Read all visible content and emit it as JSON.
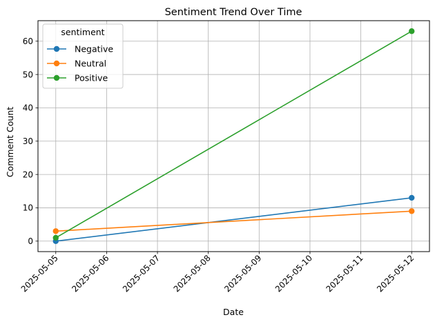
{
  "chart_data": {
    "type": "line",
    "title": "Sentiment Trend Over Time",
    "xlabel": "Date",
    "ylabel": "Comment Count",
    "x": [
      "2025-05-05",
      "2025-05-12"
    ],
    "xticks": [
      "2025-05-05",
      "2025-05-06",
      "2025-05-07",
      "2025-05-08",
      "2025-05-09",
      "2025-05-10",
      "2025-05-11",
      "2025-05-12"
    ],
    "xlim": [
      "2025-05-05",
      "2025-05-12"
    ],
    "yticks": [
      0,
      10,
      20,
      30,
      40,
      50,
      60
    ],
    "ylim": [
      0,
      63
    ],
    "grid": true,
    "legend": {
      "title": "sentiment",
      "placement": "top-left"
    },
    "series": [
      {
        "name": "Negative",
        "values": [
          0,
          13
        ],
        "color": "#1f77b4"
      },
      {
        "name": "Neutral",
        "values": [
          3,
          9
        ],
        "color": "#ff7f0e"
      },
      {
        "name": "Positive",
        "values": [
          1,
          63
        ],
        "color": "#2ca02c"
      }
    ]
  }
}
